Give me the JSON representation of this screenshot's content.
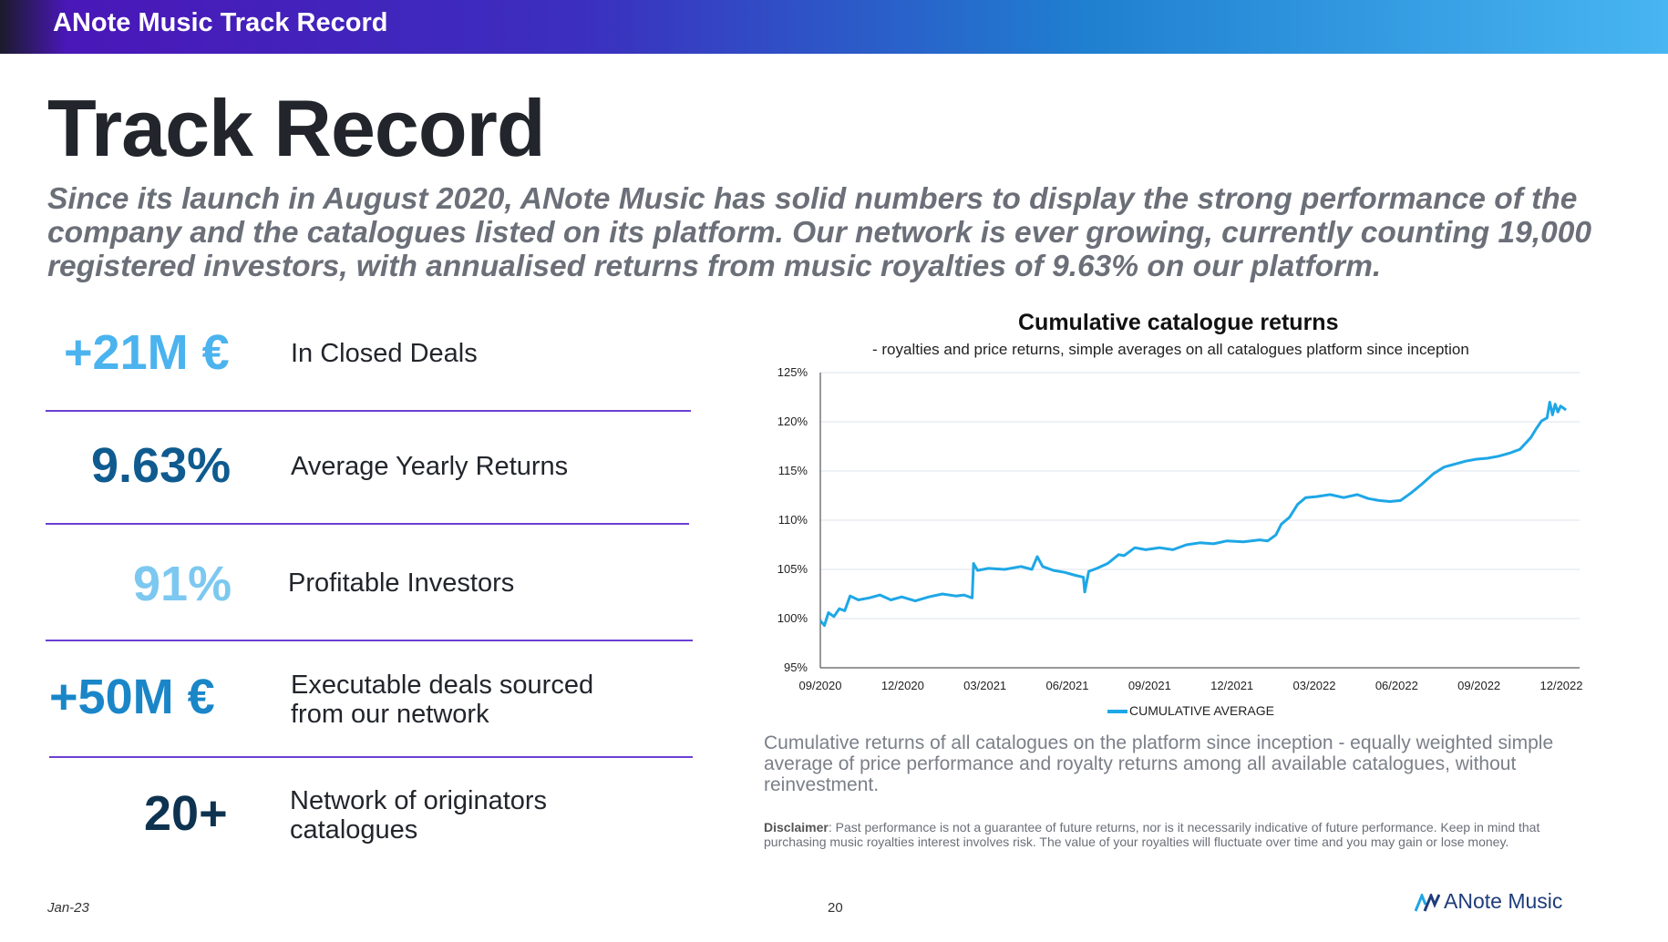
{
  "header": {
    "title": "ANote Music Track Record"
  },
  "page": {
    "heading": "Track Record",
    "intro": "Since its launch in August 2020, ANote Music has solid numbers to display the strong performance of the company and the catalogues listed on its platform. Our network is ever growing, currently counting 19,000 registered investors, with annualised returns from music royalties of 9.63% on our platform."
  },
  "colors": {
    "bright_blue": "#4bb3ee",
    "dark_blue": "#0f5b8f",
    "light_blue": "#7cc8f0",
    "mid_blue": "#1a86c8",
    "navy": "#0d3350",
    "divider": "#6b3fd4",
    "series": "#1ea7e6"
  },
  "stats": [
    {
      "value": "+21M €",
      "label": "In Closed Deals"
    },
    {
      "value": "9.63%",
      "label": "Average Yearly Returns"
    },
    {
      "value": "91%",
      "label": "Profitable Investors"
    },
    {
      "value": "+50M €",
      "label_line1": "Executable deals sourced",
      "label_line2": "from our network"
    },
    {
      "value": "20+",
      "label_line1": "Network of originators",
      "label_line2": "catalogues"
    }
  ],
  "chart_data": {
    "type": "line",
    "title": "Cumulative catalogue returns",
    "subtitle": "- royalties and price returns, simple averages on all catalogues platform since inception",
    "y_ticks": [
      "125%",
      "120%",
      "115%",
      "110%",
      "105%",
      "100%",
      "95%"
    ],
    "x_ticks": [
      "09/2020",
      "12/2020",
      "03/2021",
      "06/2021",
      "09/2021",
      "12/2021",
      "03/2022",
      "06/2022",
      "09/2022",
      "12/2022"
    ],
    "ylim": [
      95,
      125
    ],
    "xlim": [
      0,
      28
    ],
    "series": [
      {
        "name": "CUMULATIVE AVERAGE",
        "x": [
          0,
          0.15,
          0.3,
          0.5,
          0.7,
          0.9,
          1.1,
          1.4,
          1.8,
          2.2,
          2.6,
          3.0,
          3.5,
          4.0,
          4.5,
          5.0,
          5.3,
          5.6,
          5.65,
          5.8,
          6.2,
          6.8,
          7.4,
          7.8,
          8.0,
          8.2,
          8.6,
          9.0,
          9.4,
          9.7,
          9.75,
          9.9,
          10.2,
          10.6,
          11.0,
          11.2,
          11.6,
          12.0,
          12.5,
          13.0,
          13.5,
          14.0,
          14.5,
          15.0,
          15.6,
          16.2,
          16.5,
          16.8,
          17.0,
          17.3,
          17.6,
          17.9,
          18.3,
          18.8,
          19.3,
          19.8,
          20.2,
          20.6,
          21.0,
          21.4,
          21.8,
          22.2,
          22.6,
          23.0,
          23.4,
          23.8,
          24.2,
          24.6,
          25.0,
          25.4,
          25.8,
          26.2,
          26.4,
          26.6,
          26.8,
          26.9,
          27.0,
          27.1,
          27.2,
          27.3,
          27.5
        ],
        "values": [
          99.8,
          99.3,
          100.6,
          100.2,
          101.0,
          100.8,
          102.3,
          101.9,
          102.1,
          102.4,
          101.9,
          102.2,
          101.8,
          102.2,
          102.5,
          102.3,
          102.4,
          102.1,
          105.6,
          104.9,
          105.1,
          105.0,
          105.3,
          105.0,
          106.3,
          105.3,
          104.9,
          104.7,
          104.4,
          104.2,
          102.7,
          104.8,
          105.1,
          105.6,
          106.5,
          106.4,
          107.2,
          107.0,
          107.2,
          107.0,
          107.5,
          107.7,
          107.6,
          107.9,
          107.8,
          108.0,
          107.9,
          108.5,
          109.6,
          110.3,
          111.6,
          112.3,
          112.4,
          112.6,
          112.3,
          112.6,
          112.2,
          112.0,
          111.9,
          112.0,
          112.8,
          113.7,
          114.7,
          115.4,
          115.7,
          116.0,
          116.2,
          116.3,
          116.5,
          116.8,
          117.2,
          118.4,
          119.3,
          120.1,
          120.4,
          122.0,
          120.7,
          121.8,
          121.0,
          121.6,
          121.2
        ]
      }
    ],
    "legend": "CUMULATIVE AVERAGE",
    "caption": "Cumulative returns of all catalogues on the platform since inception - equally weighted simple average of price performance and royalty returns among all available catalogues, without reinvestment.",
    "disclaimer_label": "Disclaimer",
    "disclaimer_text": ": Past performance is not a guarantee of future returns, nor is it necessarily indicative of future performance. Keep in mind that purchasing music royalties interest involves risk. The value of your royalties will fluctuate over time and you may gain or lose money."
  },
  "footer": {
    "date": "Jan-23",
    "page_number": "20",
    "logo_text": "ANote Music"
  }
}
